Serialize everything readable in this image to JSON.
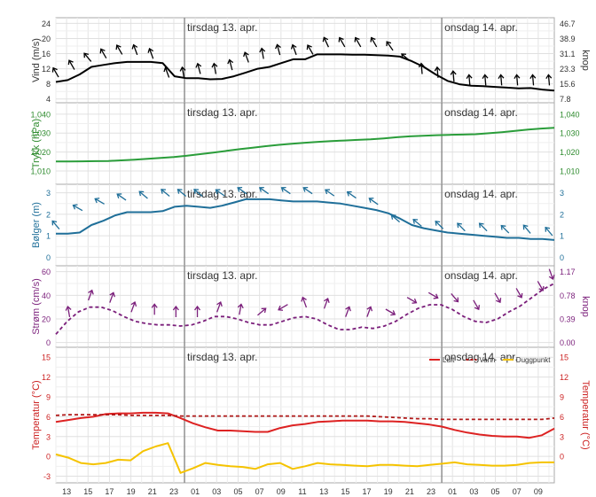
{
  "chart_data": {
    "type": "line",
    "day_labels": [
      "tirsdag 13. apr.",
      "onsdag 14. apr."
    ],
    "x_tick_labels": [
      "13",
      "15",
      "17",
      "19",
      "21",
      "23",
      "01",
      "03",
      "05",
      "07",
      "09",
      "11",
      "13",
      "15",
      "17",
      "19",
      "21",
      "23",
      "01",
      "03",
      "05",
      "07",
      "09"
    ],
    "x_hours": [
      12,
      13,
      14,
      15,
      16,
      17,
      18,
      19,
      20,
      21,
      22,
      23,
      24,
      25,
      26,
      27,
      28,
      29,
      30,
      31,
      32,
      33,
      34,
      35,
      36,
      37,
      38,
      39,
      40,
      41,
      42,
      43,
      44,
      45,
      46,
      47,
      48,
      49,
      50,
      51,
      52,
      53,
      54,
      55,
      56,
      57,
      58
    ],
    "panels": [
      {
        "id": "wind",
        "ylabel": "Vind (m/s)",
        "ylabel_right": "knop",
        "ylim": [
          3,
          25.5
        ],
        "left_ticks": [
          4,
          8,
          12,
          16,
          20,
          24
        ],
        "right_ticks": [
          "7.8",
          "15.6",
          "23.3",
          "31.1",
          "38.9",
          "46.7"
        ],
        "label_color": "#333333",
        "series": [
          {
            "color": "#000000",
            "dash": false,
            "values": [
              8.5,
              9,
              10.5,
              12.5,
              13,
              13.5,
              13.8,
              13.8,
              13.8,
              13.5,
              10,
              9.5,
              9.5,
              9.2,
              9.3,
              10,
              11,
              12,
              12.5,
              13.5,
              14.5,
              14.5,
              15.8,
              15.8,
              15.8,
              15.7,
              15.7,
              15.6,
              15.5,
              15.2,
              14,
              12.5,
              10.5,
              8.8,
              7.9,
              7.5,
              7.4,
              7.2,
              7,
              6.8,
              6.9,
              6.5,
              6.2
            ]
          }
        ]
      },
      {
        "id": "pressure",
        "ylabel": "Trykk (hPa)",
        "ylim": [
          1003,
          1046
        ],
        "left_ticks": [
          1010,
          1020,
          1030,
          1040
        ],
        "left_tick_labels": [
          "1,010",
          "1,020",
          "1,030",
          "1,040"
        ],
        "right_ticks": [
          "1,010",
          "1,020",
          "1,030",
          "1,040"
        ],
        "label_color": "#2e8b2e",
        "series": [
          {
            "color": "#2a9d3a",
            "dash": false,
            "values": [
              1015,
              1015,
              1015.1,
              1015.2,
              1015.3,
              1015.6,
              1016,
              1016.4,
              1016.9,
              1017.4,
              1018.1,
              1018.9,
              1019.7,
              1020.6,
              1021.5,
              1022.3,
              1023.1,
              1023.8,
              1024.4,
              1024.9,
              1025.4,
              1025.8,
              1026.1,
              1026.4,
              1026.7,
              1027.2,
              1027.8,
              1028.3,
              1028.6,
              1028.9,
              1029.1,
              1029.2,
              1029.4,
              1029.9,
              1030.5,
              1031.2,
              1031.9,
              1032.4,
              1032.8
            ]
          }
        ]
      },
      {
        "id": "waves",
        "ylabel": "Bølger (m)",
        "ylim": [
          -0.4,
          3.4
        ],
        "left_ticks": [
          0,
          1,
          2,
          3
        ],
        "right_ticks": [
          "0",
          "1",
          "2",
          "3"
        ],
        "label_color": "#1f6f99",
        "series": [
          {
            "color": "#1f6f99",
            "dash": false,
            "values": [
              1.1,
              1.1,
              1.15,
              1.5,
              1.7,
              1.95,
              2.1,
              2.1,
              2.1,
              2.15,
              2.35,
              2.4,
              2.35,
              2.3,
              2.4,
              2.55,
              2.7,
              2.7,
              2.7,
              2.65,
              2.6,
              2.6,
              2.6,
              2.55,
              2.5,
              2.4,
              2.3,
              2.2,
              2.05,
              1.8,
              1.5,
              1.35,
              1.25,
              1.15,
              1.1,
              1.05,
              1.0,
              0.95,
              0.9,
              0.9,
              0.85,
              0.85,
              0.8
            ]
          }
        ]
      },
      {
        "id": "current",
        "ylabel": "Strøm (cm/s)",
        "ylabel_right": "knop",
        "ylim": [
          -4,
          65
        ],
        "left_ticks": [
          0,
          20,
          40,
          60
        ],
        "right_ticks": [
          "0.00",
          "0.39",
          "0.78",
          "1.17"
        ],
        "right_tick_values": [
          0,
          20,
          40,
          60
        ],
        "label_color": "#7b1f7b",
        "series": [
          {
            "color": "#7b1f7b",
            "dash": true,
            "values": [
              7,
              18,
              26,
              30,
              30,
              27,
              22,
              18,
              16,
              15,
              15,
              14,
              15,
              18,
              22,
              22,
              20,
              17,
              15,
              15,
              18,
              21,
              22,
              20,
              15,
              11,
              11,
              13,
              12,
              14,
              18,
              24,
              29,
              32,
              32,
              28,
              22,
              18,
              17,
              20,
              26,
              31,
              38,
              45,
              50
            ]
          }
        ]
      },
      {
        "id": "temperature",
        "ylabel": "Temperatur (°C)",
        "ylabel_right": "Temperatur (°C)",
        "ylim": [
          -4,
          16.5
        ],
        "left_ticks": [
          -3,
          0,
          3,
          6,
          9,
          12,
          15
        ],
        "right_ticks": [
          "0",
          "3",
          "6",
          "9",
          "12",
          "15"
        ],
        "right_tick_values": [
          0,
          3,
          6,
          9,
          12,
          15
        ],
        "label_color": "#cc2222",
        "legend": [
          {
            "name": "Luft",
            "color": "#dd2222",
            "dash": false
          },
          {
            "name": "Vann",
            "color": "#b01818",
            "dash": true
          },
          {
            "name": "Duggpunkt",
            "color": "#f5c300",
            "dash": false
          }
        ],
        "series": [
          {
            "name": "Luft",
            "color": "#dd2222",
            "dash": false,
            "values": [
              5.2,
              5.5,
              5.8,
              6,
              6.4,
              6.5,
              6.5,
              6.6,
              6.6,
              6.5,
              5.8,
              5,
              4.4,
              3.9,
              3.9,
              3.8,
              3.7,
              3.7,
              4.3,
              4.7,
              4.9,
              5.2,
              5.3,
              5.4,
              5.4,
              5.4,
              5.3,
              5.3,
              5.2,
              5,
              4.8,
              4.5,
              4,
              3.6,
              3.3,
              3.1,
              3,
              3,
              2.8,
              3.2,
              4.2
            ]
          },
          {
            "name": "Vann",
            "color": "#b01818",
            "dash": true,
            "values": [
              6.2,
              6.3,
              6.3,
              6.3,
              6.3,
              6.3,
              6.2,
              6.2,
              6.2,
              6.2,
              6.1,
              6.1,
              6.1,
              6.1,
              6.1,
              6.1,
              6.1,
              6.1,
              6.1,
              6.1,
              6.1,
              6.1,
              6.1,
              6.1,
              6.1,
              6.1,
              6.0,
              5.9,
              5.8,
              5.7,
              5.7,
              5.6,
              5.6,
              5.6,
              5.6,
              5.6,
              5.6,
              5.6,
              5.6,
              5.6,
              5.8
            ]
          },
          {
            "name": "Duggpunkt",
            "color": "#f5c300",
            "dash": false,
            "values": [
              0.3,
              -0.2,
              -1,
              -1.2,
              -1,
              -0.5,
              -0.6,
              0.8,
              1.5,
              2,
              -2.5,
              -1.8,
              -1,
              -1.3,
              -1.5,
              -1.6,
              -1.9,
              -1.2,
              -1.0,
              -1.9,
              -1.5,
              -1,
              -1.2,
              -1.3,
              -1.4,
              -1.5,
              -1.3,
              -1.3,
              -1.4,
              -1.5,
              -1.3,
              -1.1,
              -0.9,
              -1.2,
              -1.3,
              -1.4,
              -1.4,
              -1.3,
              -1.0,
              -0.9,
              -0.9
            ]
          }
        ]
      }
    ],
    "arrows": [
      {
        "panel": "wind",
        "color": "#000000",
        "x": [
          13,
          14,
          15,
          16,
          17,
          18,
          19,
          20,
          21,
          22,
          23,
          24,
          25,
          26,
          27,
          28,
          29,
          30,
          31,
          32,
          33,
          34,
          35,
          36,
          37,
          38,
          39,
          40,
          41,
          42,
          43,
          44
        ],
        "y": [
          11,
          13,
          15,
          16,
          17,
          17,
          16,
          11,
          11,
          12,
          12,
          13,
          15,
          16,
          17,
          17,
          17,
          19,
          19,
          19,
          19,
          18,
          15,
          12,
          11,
          10,
          9,
          9,
          9,
          9,
          9,
          9
        ],
        "angle_deg": [
          150,
          150,
          140,
          150,
          150,
          160,
          160,
          160,
          170,
          165,
          170,
          165,
          160,
          170,
          165,
          160,
          150,
          155,
          150,
          150,
          150,
          145,
          130,
          175,
          175,
          175,
          175,
          175,
          175,
          175,
          175,
          175
        ]
      },
      {
        "panel": "waves",
        "color": "#1f6f99",
        "x": [
          13,
          15,
          17,
          19,
          21,
          23,
          24.5,
          26,
          28,
          30,
          32,
          34,
          36,
          38,
          40,
          42,
          44,
          46,
          48,
          50,
          52,
          54,
          56,
          58
        ],
        "y": [
          1.5,
          2.3,
          2.6,
          2.8,
          2.9,
          3.0,
          3.0,
          3.0,
          3.0,
          3.1,
          3.1,
          3.1,
          3.1,
          3.0,
          2.9,
          2.6,
          1.8,
          1.6,
          1.5,
          1.4,
          1.4,
          1.3,
          1.3,
          1.2
        ],
        "angle_deg": [
          140,
          120,
          120,
          125,
          130,
          130,
          130,
          130,
          125,
          125,
          125,
          125,
          125,
          125,
          125,
          125,
          130,
          130,
          135,
          135,
          135,
          135,
          140,
          140
        ]
      }
    ]
  }
}
